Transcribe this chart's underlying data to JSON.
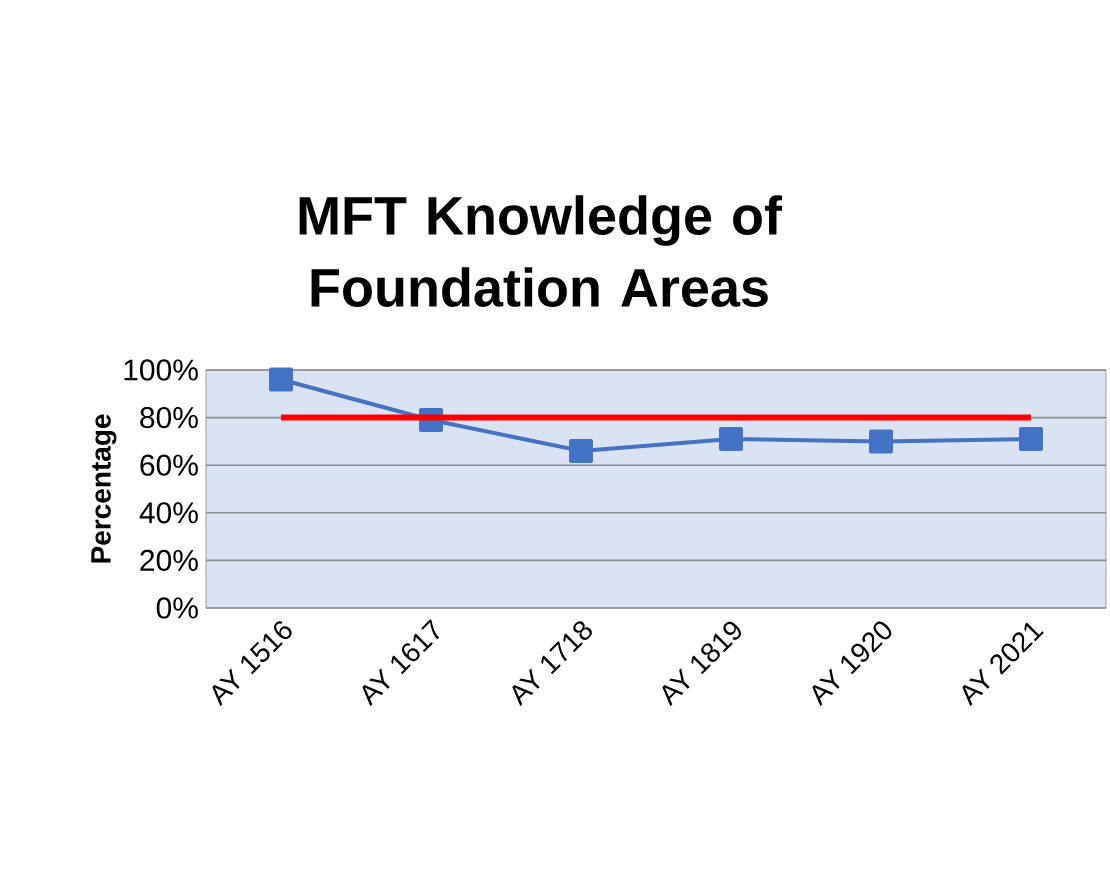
{
  "chart_data": {
    "type": "line",
    "title": "MFT Knowledge of Foundation Areas",
    "ylabel": "Percentage",
    "categories": [
      "AY 1516",
      "AY 1617",
      "AY 1718",
      "AY 1819",
      "AY 1920",
      "AY 2021"
    ],
    "series": [
      {
        "color": "#4472c4",
        "marker": "square",
        "values": [
          96,
          79,
          66,
          71,
          70,
          71
        ]
      },
      {
        "color": "#ff0000",
        "marker": "none",
        "values": [
          80,
          80,
          80,
          80,
          80,
          80
        ]
      }
    ],
    "ylim": [
      0,
      100
    ],
    "yticks": [
      {
        "value": 0,
        "label": "0%"
      },
      {
        "value": 20,
        "label": "20%"
      },
      {
        "value": 40,
        "label": "40%"
      },
      {
        "value": 60,
        "label": "60%"
      },
      {
        "value": 80,
        "label": "80%"
      },
      {
        "value": 100,
        "label": "100%"
      }
    ],
    "grid": "y"
  }
}
